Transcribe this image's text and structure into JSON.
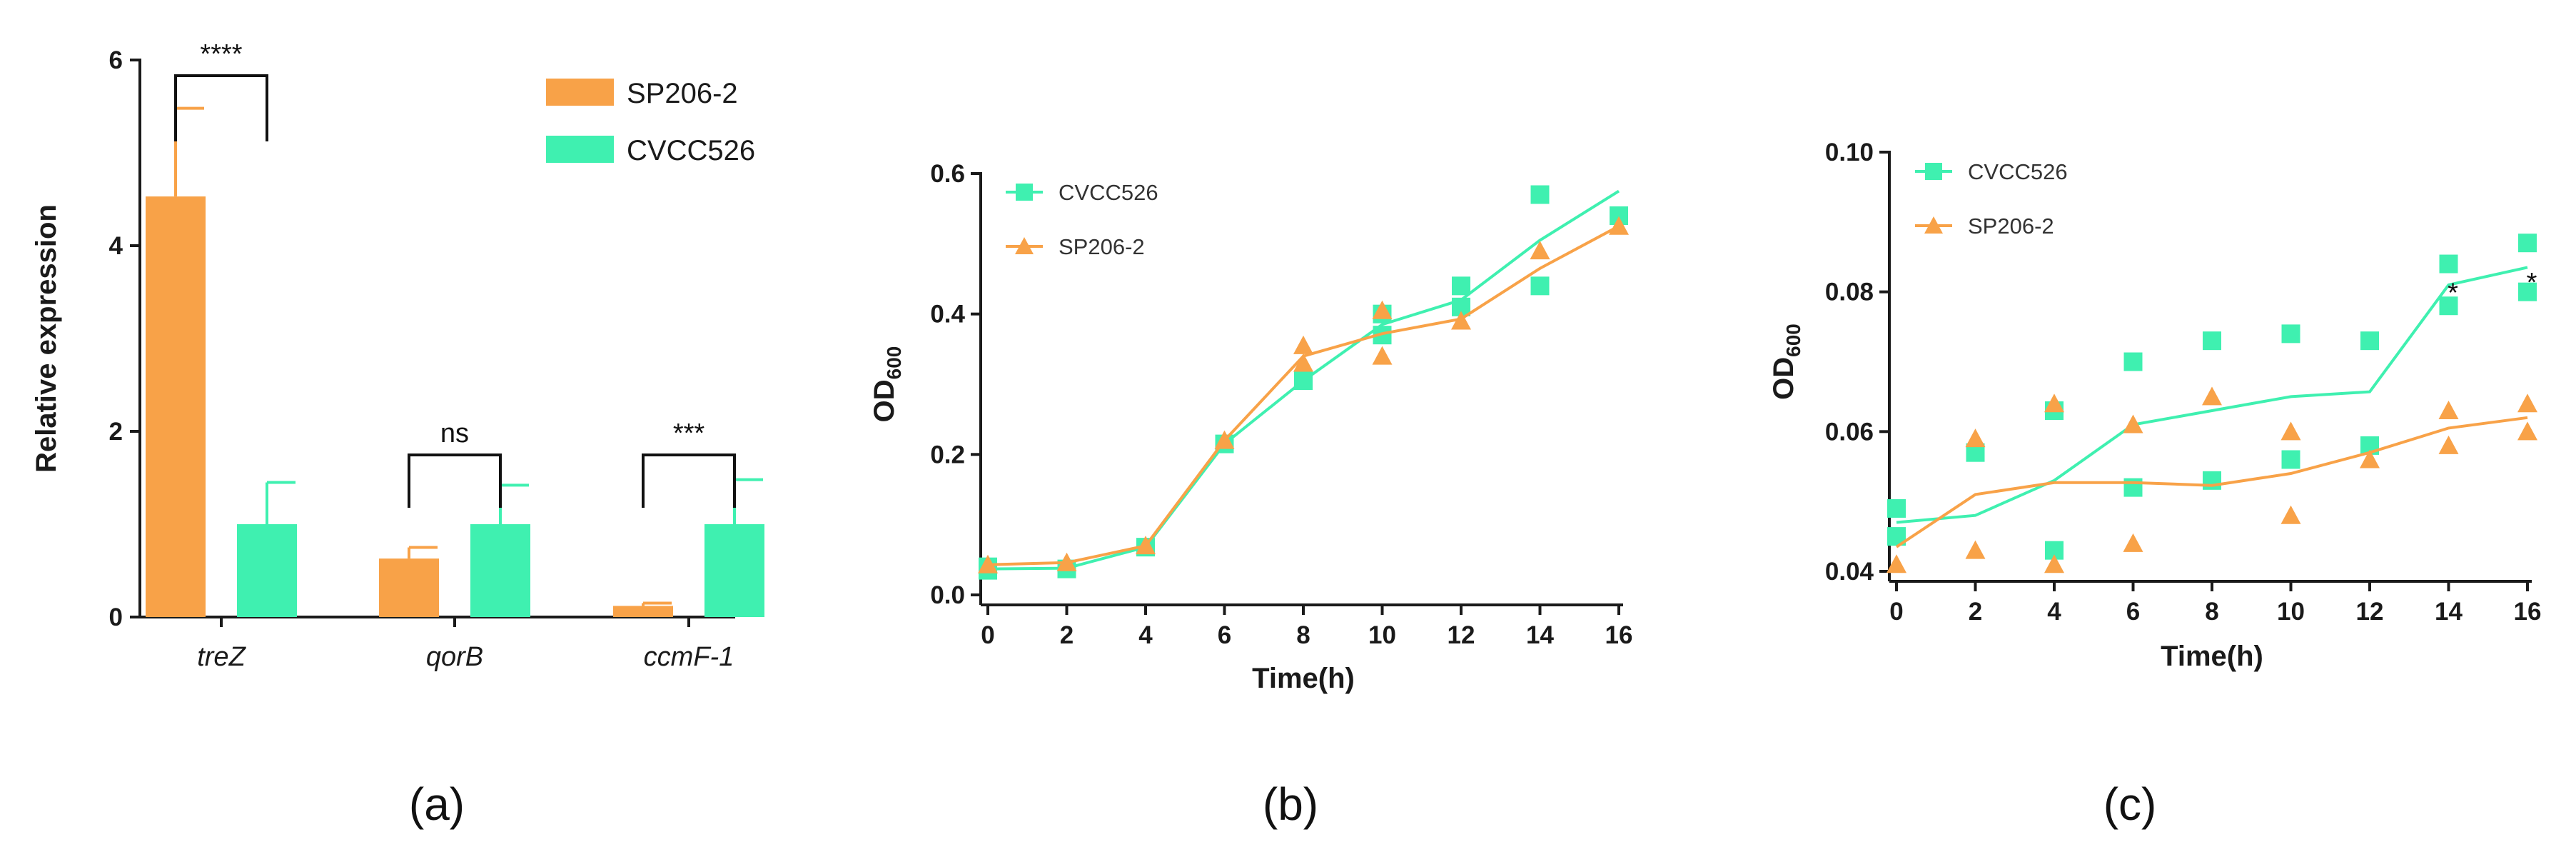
{
  "colors": {
    "orange": "#f8a248",
    "green": "#3ff0b0",
    "axis": "#1a1a1a"
  },
  "chart_data": [
    {
      "type": "bar",
      "panel_label": "(a)",
      "ylabel": "Relative expression",
      "xlabel": "",
      "ylim": [
        0,
        6
      ],
      "yticks": [
        "0",
        "2",
        "4",
        "6"
      ],
      "categories": [
        "treZ",
        "qorB",
        "ccmF-1"
      ],
      "legend": [
        "SP206-2",
        "CVCC526"
      ],
      "series": [
        {
          "name": "SP206-2",
          "color": "#f8a248",
          "values": [
            4.53,
            0.63,
            0.12
          ],
          "error": [
            0.95,
            0.12,
            0.03
          ]
        },
        {
          "name": "CVCC526",
          "color": "#3ff0b0",
          "values": [
            1.0,
            1.0,
            1.0
          ],
          "error": [
            0.45,
            0.42,
            0.48
          ]
        }
      ],
      "significance": [
        "****",
        "ns",
        "***"
      ]
    },
    {
      "type": "line",
      "panel_label": "(b)",
      "ylabel_main": "OD",
      "ylabel_sub": "600",
      "xlabel": "Time(h)",
      "xlim": [
        0,
        16
      ],
      "ylim": [
        0,
        0.6
      ],
      "xticks": [
        "0",
        "2",
        "4",
        "6",
        "8",
        "10",
        "12",
        "14",
        "16"
      ],
      "yticks": [
        "0.0",
        "0.2",
        "0.4",
        "0.6"
      ],
      "series": [
        {
          "name": "CVCC526",
          "color": "#3ff0b0",
          "marker": "square",
          "line_x": [
            0,
            2,
            4,
            6,
            8,
            10,
            12,
            14,
            16
          ],
          "line_y": [
            0.037,
            0.038,
            0.068,
            0.215,
            0.305,
            0.385,
            0.42,
            0.505,
            0.575
          ],
          "points": [
            [
              0,
              0.035
            ],
            [
              0,
              0.04
            ],
            [
              2,
              0.037
            ],
            [
              4,
              0.068
            ],
            [
              6,
              0.215
            ],
            [
              8,
              0.305
            ],
            [
              10,
              0.37
            ],
            [
              10,
              0.4
            ],
            [
              12,
              0.41
            ],
            [
              12,
              0.44
            ],
            [
              14,
              0.44
            ],
            [
              14,
              0.57
            ],
            [
              16,
              0.54
            ]
          ]
        },
        {
          "name": "SP206-2",
          "color": "#f8a248",
          "marker": "triangle",
          "line_x": [
            0,
            2,
            4,
            6,
            8,
            10,
            12,
            14,
            16
          ],
          "line_y": [
            0.043,
            0.046,
            0.07,
            0.22,
            0.34,
            0.372,
            0.393,
            0.465,
            0.525
          ],
          "points": [
            [
              0,
              0.043
            ],
            [
              2,
              0.046
            ],
            [
              4,
              0.07
            ],
            [
              6,
              0.22
            ],
            [
              8,
              0.355
            ],
            [
              8,
              0.33
            ],
            [
              10,
              0.34
            ],
            [
              10,
              0.405
            ],
            [
              12,
              0.39
            ],
            [
              14,
              0.49
            ],
            [
              16,
              0.525
            ]
          ]
        }
      ]
    },
    {
      "type": "line",
      "panel_label": "(c)",
      "ylabel_main": "OD",
      "ylabel_sub": "600",
      "xlabel": "Time(h)",
      "xlim": [
        0,
        16
      ],
      "ylim": [
        0.04,
        0.1
      ],
      "xticks": [
        "0",
        "2",
        "4",
        "6",
        "8",
        "10",
        "12",
        "14",
        "16"
      ],
      "yticks": [
        "0.04",
        "0.06",
        "0.08",
        "0.10"
      ],
      "series": [
        {
          "name": "CVCC526",
          "color": "#3ff0b0",
          "marker": "square",
          "line_x": [
            0,
            2,
            4,
            6,
            8,
            10,
            12,
            14,
            16
          ],
          "line_y": [
            0.047,
            0.048,
            0.053,
            0.061,
            0.063,
            0.065,
            0.0657,
            0.081,
            0.0835
          ],
          "points": [
            [
              0,
              0.049
            ],
            [
              0,
              0.045
            ],
            [
              2,
              0.057
            ],
            [
              4,
              0.063
            ],
            [
              4,
              0.043
            ],
            [
              6,
              0.07
            ],
            [
              6,
              0.052
            ],
            [
              8,
              0.073
            ],
            [
              8,
              0.053
            ],
            [
              10,
              0.074
            ],
            [
              10,
              0.056
            ],
            [
              12,
              0.073
            ],
            [
              12,
              0.058
            ],
            [
              14,
              0.084
            ],
            [
              14,
              0.078
            ],
            [
              16,
              0.087
            ],
            [
              16,
              0.08
            ]
          ]
        },
        {
          "name": "SP206-2",
          "color": "#f8a248",
          "marker": "triangle",
          "line_x": [
            0,
            2,
            4,
            6,
            8,
            10,
            12,
            14,
            16
          ],
          "line_y": [
            0.0435,
            0.051,
            0.0527,
            0.0527,
            0.0523,
            0.054,
            0.057,
            0.0605,
            0.062
          ],
          "points": [
            [
              0,
              0.041
            ],
            [
              2,
              0.059
            ],
            [
              2,
              0.043
            ],
            [
              4,
              0.064
            ],
            [
              4,
              0.041
            ],
            [
              6,
              0.061
            ],
            [
              6,
              0.044
            ],
            [
              8,
              0.065
            ],
            [
              10,
              0.06
            ],
            [
              10,
              0.048
            ],
            [
              12,
              0.056
            ],
            [
              14,
              0.063
            ],
            [
              14,
              0.058
            ],
            [
              16,
              0.064
            ],
            [
              16,
              0.06
            ]
          ]
        }
      ],
      "annotations": [
        {
          "text": "*",
          "x": 14,
          "y": 0.08
        },
        {
          "text": "*",
          "x": 16,
          "y": 0.0815
        }
      ]
    }
  ]
}
